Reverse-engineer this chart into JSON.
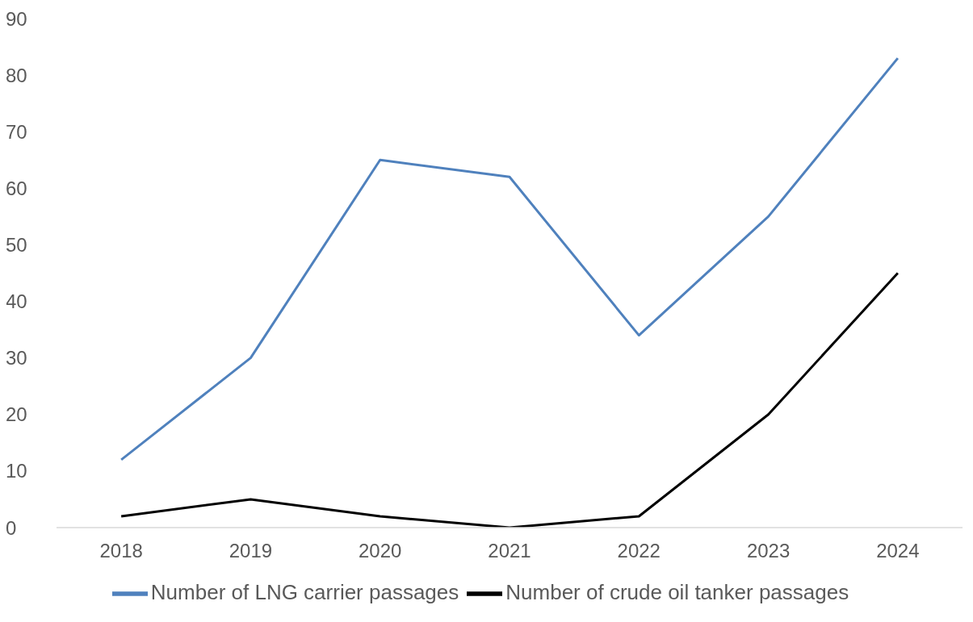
{
  "chart_data": {
    "type": "line",
    "categories": [
      "2018",
      "2019",
      "2020",
      "2021",
      "2022",
      "2023",
      "2024"
    ],
    "series": [
      {
        "name": "Number of crude oil tanker passages",
        "color": "#000000",
        "values": [
          2,
          5,
          2,
          0,
          2,
          20,
          45
        ]
      },
      {
        "name": "Number of LNG carrier passages",
        "color": "#4f81bd",
        "values": [
          12,
          30,
          65,
          62,
          34,
          55,
          83
        ]
      }
    ],
    "ylim": [
      0,
      90
    ],
    "yticks": [
      0,
      10,
      20,
      30,
      40,
      50,
      60,
      70,
      80,
      90
    ],
    "grid": false,
    "legend": "bottom",
    "marker": "none",
    "line_style": "solid"
  }
}
